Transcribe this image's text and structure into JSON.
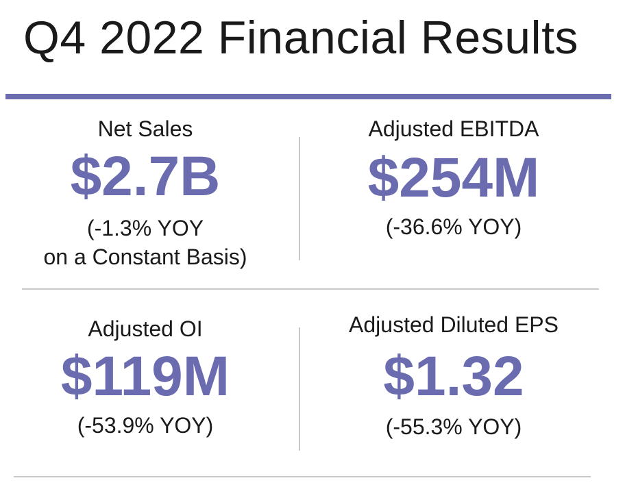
{
  "title": "Q4 2022 Financial Results",
  "colors": {
    "accent": "#6b6bb0",
    "divider": "#c8c8c8",
    "text": "#1a1a1a"
  },
  "metrics": [
    {
      "label": "Net Sales",
      "value": "$2.7B",
      "change_line1": "(-1.3% YOY",
      "change_line2": "on a Constant Basis)"
    },
    {
      "label": "Adjusted EBITDA",
      "value": "$254M",
      "change_line1": "(-36.6% YOY)"
    },
    {
      "label": "Adjusted OI",
      "value": "$119M",
      "change_line1": "(-53.9% YOY)"
    },
    {
      "label": "Adjusted Diluted EPS",
      "value": "$1.32",
      "change_line1": "(-55.3% YOY)"
    }
  ]
}
